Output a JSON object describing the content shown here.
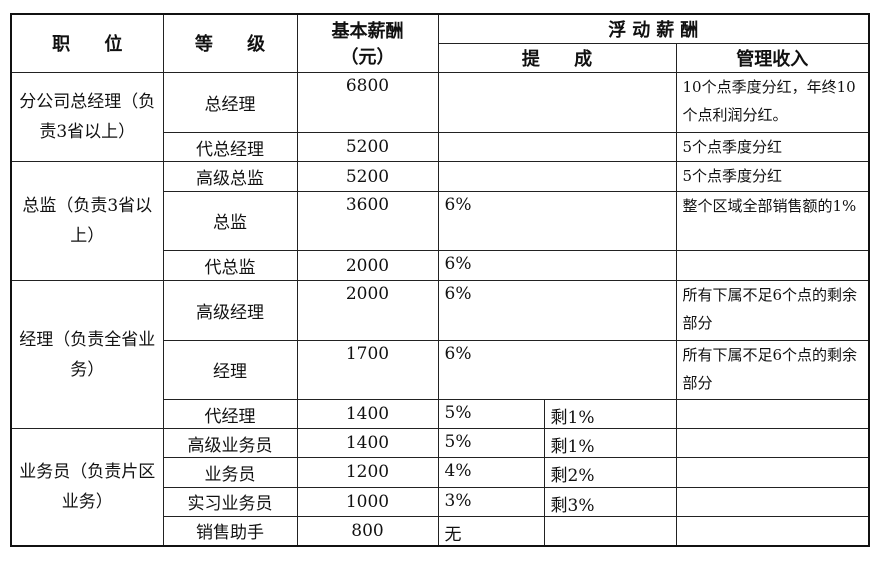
{
  "header": {
    "position": "职 位",
    "grade": "等 级",
    "base_line1": "基本薪酬",
    "base_line2": "（元）",
    "floating": "浮动薪酬",
    "commission": "提 成",
    "management": "管理收入"
  },
  "groups": [
    {
      "position": "分公司总经理（负责3省以上）",
      "rows": [
        {
          "grade": "总经理",
          "base": "6800",
          "commission": "",
          "remainder": "",
          "management": "10个点季度分红，年终10个点利润分红。"
        },
        {
          "grade": "代总经理",
          "base": "5200",
          "commission": "",
          "remainder": "",
          "management": "5个点季度分红"
        }
      ]
    },
    {
      "position": "总监（负责3省以上）",
      "rows": [
        {
          "grade": "高级总监",
          "base": "5200",
          "commission": "",
          "remainder": "",
          "management": "5个点季度分红"
        },
        {
          "grade": "总监",
          "base": "3600",
          "commission": "6%",
          "remainder": "",
          "management": "整个区域全部销售额的1%"
        },
        {
          "grade": "代总监",
          "base": "2000",
          "commission": "6%",
          "remainder": "",
          "management": ""
        }
      ]
    },
    {
      "position": "经理（负责全省业务）",
      "rows": [
        {
          "grade": "高级经理",
          "base": "2000",
          "commission": "6%",
          "remainder": "",
          "management": "所有下属不足6个点的剩余部分"
        },
        {
          "grade": "经理",
          "base": "1700",
          "commission": "6%",
          "remainder": "",
          "management": "所有下属不足6个点的剩余部分"
        },
        {
          "grade": "代经理",
          "base": "1400",
          "commission": "5%",
          "remainder": "剩1%",
          "management": ""
        }
      ]
    },
    {
      "position": "业务员（负责片区业务）",
      "rows": [
        {
          "grade": "高级业务员",
          "base": "1400",
          "commission": "5%",
          "remainder": "剩1%",
          "management": ""
        },
        {
          "grade": "业务员",
          "base": "1200",
          "commission": "4%",
          "remainder": "剩2%",
          "management": ""
        },
        {
          "grade": "实习业务员",
          "base": "1000",
          "commission": "3%",
          "remainder": "剩3%",
          "management": ""
        },
        {
          "grade": "销售助手",
          "base": "800",
          "commission": "无",
          "remainder": "",
          "management": ""
        }
      ]
    }
  ]
}
